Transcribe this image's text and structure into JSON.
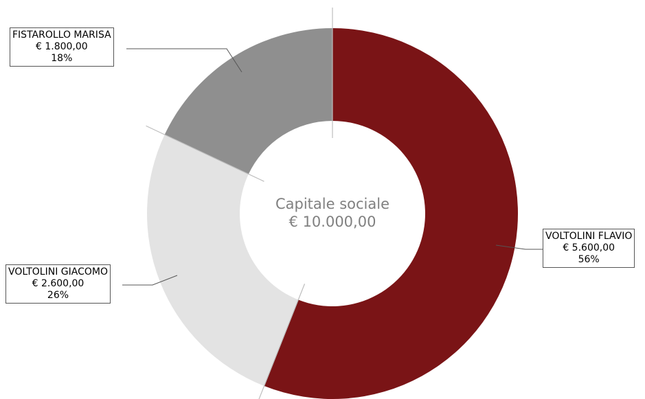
{
  "chart_data": {
    "type": "pie",
    "style": "donut",
    "center_label": {
      "title": "Capitale sociale",
      "total": "€ 10.000,00"
    },
    "slices": [
      {
        "name": "VOLTOLINI FLAVIO",
        "amount": "€ 5.600,00",
        "percent": "56%",
        "value": 5600,
        "color": "#7a1416"
      },
      {
        "name": "VOLTOLINI GIACOMO",
        "amount": "€ 2.600,00",
        "percent": "26%",
        "value": 2600,
        "color": "#e3e3e3"
      },
      {
        "name": "FISTAROLLO MARISA",
        "amount": "€ 1.800,00",
        "percent": "18%",
        "value": 1800,
        "color": "#8f8f8f"
      }
    ]
  }
}
